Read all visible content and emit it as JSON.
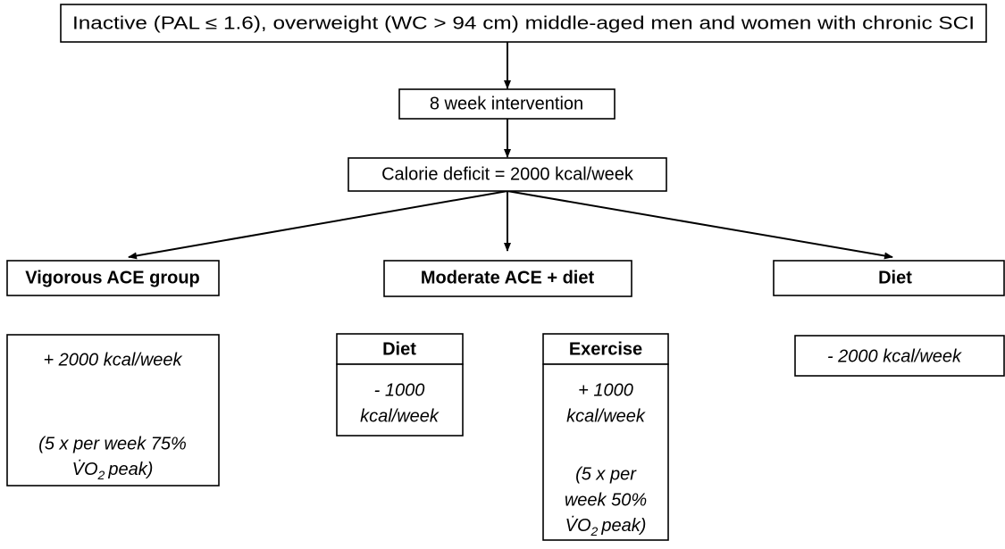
{
  "nodes": {
    "population": {
      "label": "Inactive (PAL ≤ 1.6), overweight (WC > 94 cm) middle-aged men and women with chronic SCI"
    },
    "intervention": {
      "label": "8 week intervention"
    },
    "deficit": {
      "label": "Calorie deficit = 2000 kcal/week"
    },
    "vigorous": {
      "label": "Vigorous ACE group",
      "detail": {
        "line1": "+ 2000 kcal/week",
        "line2": "(5 x per week 75%",
        "vo2": "V̇O",
        "sub": "2",
        "peak": "peak)"
      }
    },
    "moderate": {
      "label": "Moderate ACE + diet",
      "diet": {
        "label": "Diet",
        "line1": "- 1000",
        "line2": "kcal/week"
      },
      "exercise": {
        "label": "Exercise",
        "line1": "+ 1000",
        "line2": "kcal/week",
        "line3": "(5 x per",
        "line4": "week 50%",
        "vo2": "V̇O",
        "sub": "2",
        "peak": "peak)"
      }
    },
    "diet": {
      "label": "Diet",
      "detail": {
        "line1": "- 2000 kcal/week"
      }
    }
  }
}
